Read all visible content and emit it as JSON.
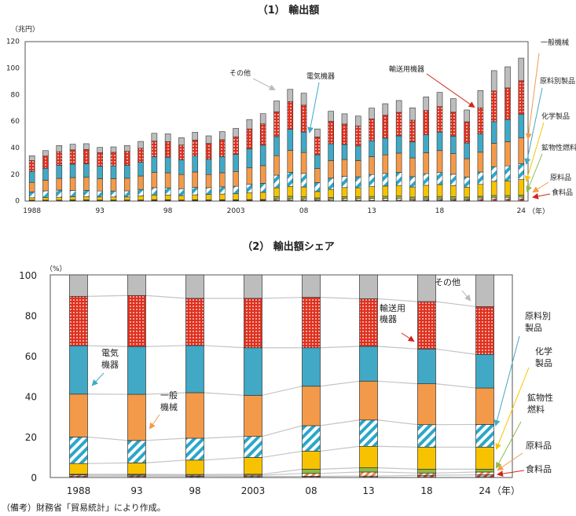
{
  "footnote": "（備考）財務省「貿易統計」により作成。",
  "chart_data": [
    {
      "type": "bar",
      "stacked": true,
      "title": "（1） 輸出額",
      "ylabel": "（兆円）",
      "xlabel_unit": "（年）",
      "ylim": [
        0,
        120
      ],
      "yticks": [
        "0",
        "20",
        "40",
        "60",
        "80",
        "100",
        "120"
      ],
      "xtick_labels": [
        {
          "year": 1988,
          "label": "1988"
        },
        {
          "year": 1993,
          "label": "93"
        },
        {
          "year": 1998,
          "label": "98"
        },
        {
          "year": 2003,
          "label": "2003"
        },
        {
          "year": 2008,
          "label": "08"
        },
        {
          "year": 2013,
          "label": "13"
        },
        {
          "year": 2018,
          "label": "18"
        },
        {
          "year": 2024,
          "label": "24"
        }
      ],
      "grid": false,
      "categories": [
        1988,
        1989,
        1990,
        1991,
        1992,
        1993,
        1994,
        1995,
        1996,
        1997,
        1998,
        1999,
        2000,
        2001,
        2002,
        2003,
        2004,
        2005,
        2006,
        2007,
        2008,
        2009,
        2010,
        2011,
        2012,
        2013,
        2014,
        2015,
        2016,
        2017,
        2018,
        2019,
        2020,
        2021,
        2022,
        2023,
        2024
      ],
      "series": [
        {
          "name": "食料品",
          "color": "#c0392b",
          "values": [
            0.2,
            0.2,
            0.2,
            0.3,
            0.3,
            0.2,
            0.2,
            0.2,
            0.2,
            0.3,
            0.3,
            0.2,
            0.3,
            0.2,
            0.2,
            0.2,
            0.2,
            0.3,
            0.4,
            0.4,
            0.4,
            0.3,
            0.3,
            0.4,
            0.4,
            0.4,
            0.4,
            0.5,
            0.7,
            0.8,
            0.8,
            0.8,
            0.7,
            1.0,
            1.2,
            1.2,
            1.3
          ]
        },
        {
          "name": "原料品",
          "color": "#f08a3c",
          "values": [
            0.2,
            0.2,
            0.2,
            0.2,
            0.2,
            0.2,
            0.2,
            0.2,
            0.2,
            0.3,
            0.3,
            0.2,
            0.3,
            0.3,
            0.3,
            0.3,
            0.4,
            0.4,
            1.1,
            1.2,
            1.1,
            0.8,
            0.9,
            1.3,
            1.3,
            1.4,
            1.5,
            1.5,
            0.8,
            0.9,
            0.9,
            0.8,
            0.8,
            1.2,
            1.4,
            1.4,
            1.5
          ]
        },
        {
          "name": "鉱物性燃料",
          "color": "#8dbb47",
          "values": [
            0.1,
            0.1,
            0.1,
            0.2,
            0.2,
            0.2,
            0.2,
            0.2,
            0.2,
            0.2,
            0.2,
            0.2,
            0.2,
            0.2,
            0.3,
            0.3,
            0.3,
            0.3,
            1.6,
            1.8,
            1.7,
            1.1,
            1.4,
            1.4,
            1.3,
            1.5,
            1.5,
            1.6,
            1.3,
            1.5,
            1.6,
            1.5,
            1.3,
            1.2,
            1.4,
            1.4,
            1.5
          ]
        },
        {
          "name": "化学製品",
          "color": "#f7c300",
          "values": [
            1.8,
            2.0,
            2.2,
            2.4,
            2.4,
            2.3,
            2.3,
            2.3,
            3.2,
            3.6,
            3.6,
            3.4,
            3.7,
            4.1,
            4.3,
            4.5,
            5.1,
            5.4,
            6.7,
            7.5,
            7.2,
            4.8,
            6.0,
            6.9,
            6.8,
            7.4,
            7.7,
            8.0,
            7.6,
            8.5,
            8.9,
            8.4,
            7.5,
            9.0,
            10.7,
            11.0,
            11.7
          ]
        },
        {
          "name": "原料別製品",
          "color": "#2aa7c9",
          "values": [
            4.4,
            5.0,
            5.4,
            4.7,
            4.8,
            4.5,
            4.5,
            4.6,
            4.8,
            5.5,
            5.4,
            5.1,
            5.6,
            5.1,
            5.4,
            5.7,
            6.4,
            6.8,
            9.5,
            10.6,
            10.2,
            6.8,
            8.5,
            8.5,
            8.3,
            9.1,
            9.5,
            9.8,
            7.8,
            8.7,
            9.1,
            8.5,
            7.6,
            9.3,
            11.0,
            11.3,
            12.0
          ]
        },
        {
          "name": "一般機械",
          "color": "#f39a4a",
          "values": [
            7.2,
            8.0,
            8.8,
            9.7,
            9.8,
            9.2,
            9.3,
            9.5,
            10.1,
            11.4,
            11.3,
            10.7,
            11.6,
            9.9,
            10.6,
            11.1,
            12.4,
            13.3,
            14.7,
            16.4,
            15.8,
            10.5,
            13.1,
            12.6,
            12.2,
            13.4,
            14.0,
            14.5,
            14.1,
            15.8,
            16.5,
            15.5,
            13.8,
            14.9,
            17.6,
            18.2,
            19.3
          ]
        },
        {
          "name": "電気機器",
          "color": "#41a9c5",
          "values": [
            8.1,
            9.0,
            9.9,
            10.1,
            10.1,
            9.5,
            9.6,
            9.8,
            10.4,
            11.8,
            11.7,
            11.1,
            12.0,
            11.5,
            12.2,
            12.8,
            14.4,
            15.4,
            14.3,
            15.9,
            15.4,
            10.3,
            12.8,
            11.3,
            11.0,
            12.0,
            12.6,
            13.0,
            12.0,
            13.5,
            14.0,
            13.2,
            11.8,
            13.8,
            16.3,
            16.7,
            17.8
          ]
        },
        {
          "name": "輸送用機器",
          "color": "#e0301e",
          "values": [
            8.3,
            9.2,
            10.2,
            10.7,
            10.8,
            10.1,
            10.2,
            10.5,
            10.4,
            11.8,
            11.7,
            11.1,
            12.0,
            11.9,
            12.7,
            13.3,
            14.9,
            16.0,
            18.7,
            20.9,
            20.2,
            13.5,
            16.8,
            15.4,
            15.0,
            16.4,
            17.2,
            17.7,
            16.4,
            18.3,
            19.1,
            18.0,
            16.0,
            19.6,
            23.1,
            23.8,
            25.3
          ]
        },
        {
          "name": "その他",
          "color": "#bdbdbd",
          "values": [
            3.6,
            4.1,
            4.6,
            4.3,
            4.4,
            4.0,
            4.1,
            4.3,
            5.2,
            5.9,
            5.9,
            5.5,
            5.9,
            5.7,
            6.1,
            6.3,
            7.1,
            7.7,
            8.2,
            9.2,
            9.0,
            6.0,
            7.6,
            7.7,
            7.5,
            8.2,
            8.7,
            8.9,
            9.3,
            10.2,
            10.7,
            10.2,
            8.9,
            13.0,
            15.3,
            15.9,
            17.0
          ]
        }
      ],
      "annotations": {
        "other": "その他",
        "electrical": "電気機器",
        "transport": "輸送用機器",
        "general_machinery": "一般機械",
        "manufactured_goods": "原料別製品",
        "chemicals": "化学製品",
        "mineral_fuels": "鉱物性燃料",
        "raw_materials": "原料品",
        "foodstuff": "食料品"
      }
    },
    {
      "type": "bar",
      "stacked": true,
      "title": "（2） 輸出額シェア",
      "ylabel": "（%）",
      "xlabel_unit": "（年）",
      "ylim": [
        0,
        100
      ],
      "yticks": [
        "0",
        "20",
        "40",
        "60",
        "80",
        "100"
      ],
      "grid": false,
      "categories": [
        "1988",
        "93",
        "98",
        "2003",
        "08",
        "13",
        "18",
        "24"
      ],
      "series": [
        {
          "name": "食料品",
          "color": "#c0392b",
          "values": [
            0.6,
            0.6,
            0.5,
            0.4,
            0.5,
            0.6,
            1.0,
            1.2
          ]
        },
        {
          "name": "原料品",
          "color": "#f08a3c",
          "values": [
            0.6,
            0.5,
            0.5,
            0.6,
            1.4,
            2.0,
            1.1,
            1.4
          ]
        },
        {
          "name": "鉱物性燃料",
          "color": "#8dbb47",
          "values": [
            0.3,
            0.4,
            0.4,
            0.5,
            2.1,
            2.1,
            1.9,
            1.4
          ]
        },
        {
          "name": "化学製品",
          "color": "#f7c300",
          "values": [
            5.3,
            5.6,
            7.1,
            8.3,
            8.9,
            10.6,
            10.9,
            10.9
          ]
        },
        {
          "name": "原料別製品",
          "color": "#2aa7c9",
          "values": [
            13.1,
            11.1,
            10.8,
            10.4,
            12.6,
            13.0,
            11.1,
            11.2
          ]
        },
        {
          "name": "一般機械",
          "color": "#f39a4a",
          "values": [
            21.2,
            22.8,
            22.5,
            20.3,
            19.5,
            19.2,
            20.2,
            18.0
          ]
        },
        {
          "name": "電気機器",
          "color": "#41a9c5",
          "values": [
            23.9,
            23.6,
            23.3,
            23.5,
            19.0,
            17.2,
            17.2,
            16.6
          ]
        },
        {
          "name": "輸送用機器",
          "color": "#e0301e",
          "values": [
            24.4,
            25.2,
            23.3,
            24.4,
            24.9,
            23.5,
            23.4,
            23.6
          ]
        },
        {
          "name": "その他",
          "color": "#bdbdbd",
          "values": [
            10.6,
            10.2,
            11.6,
            11.6,
            11.1,
            11.8,
            13.2,
            15.7
          ]
        }
      ],
      "annotations": {
        "other": "その他",
        "transport_1": "輸送用",
        "transport_2": "機器",
        "electrical_1": "電気",
        "electrical_2": "機器",
        "general_machinery_1": "一般",
        "general_machinery_2": "機械",
        "manufactured_goods_1": "原料別",
        "manufactured_goods_2": "製品",
        "chemicals_1": "化学",
        "chemicals_2": "製品",
        "mineral_fuels_1": "鉱物性",
        "mineral_fuels_2": "燃料",
        "raw_materials": "原料品",
        "foodstuff": "食料品"
      }
    }
  ]
}
